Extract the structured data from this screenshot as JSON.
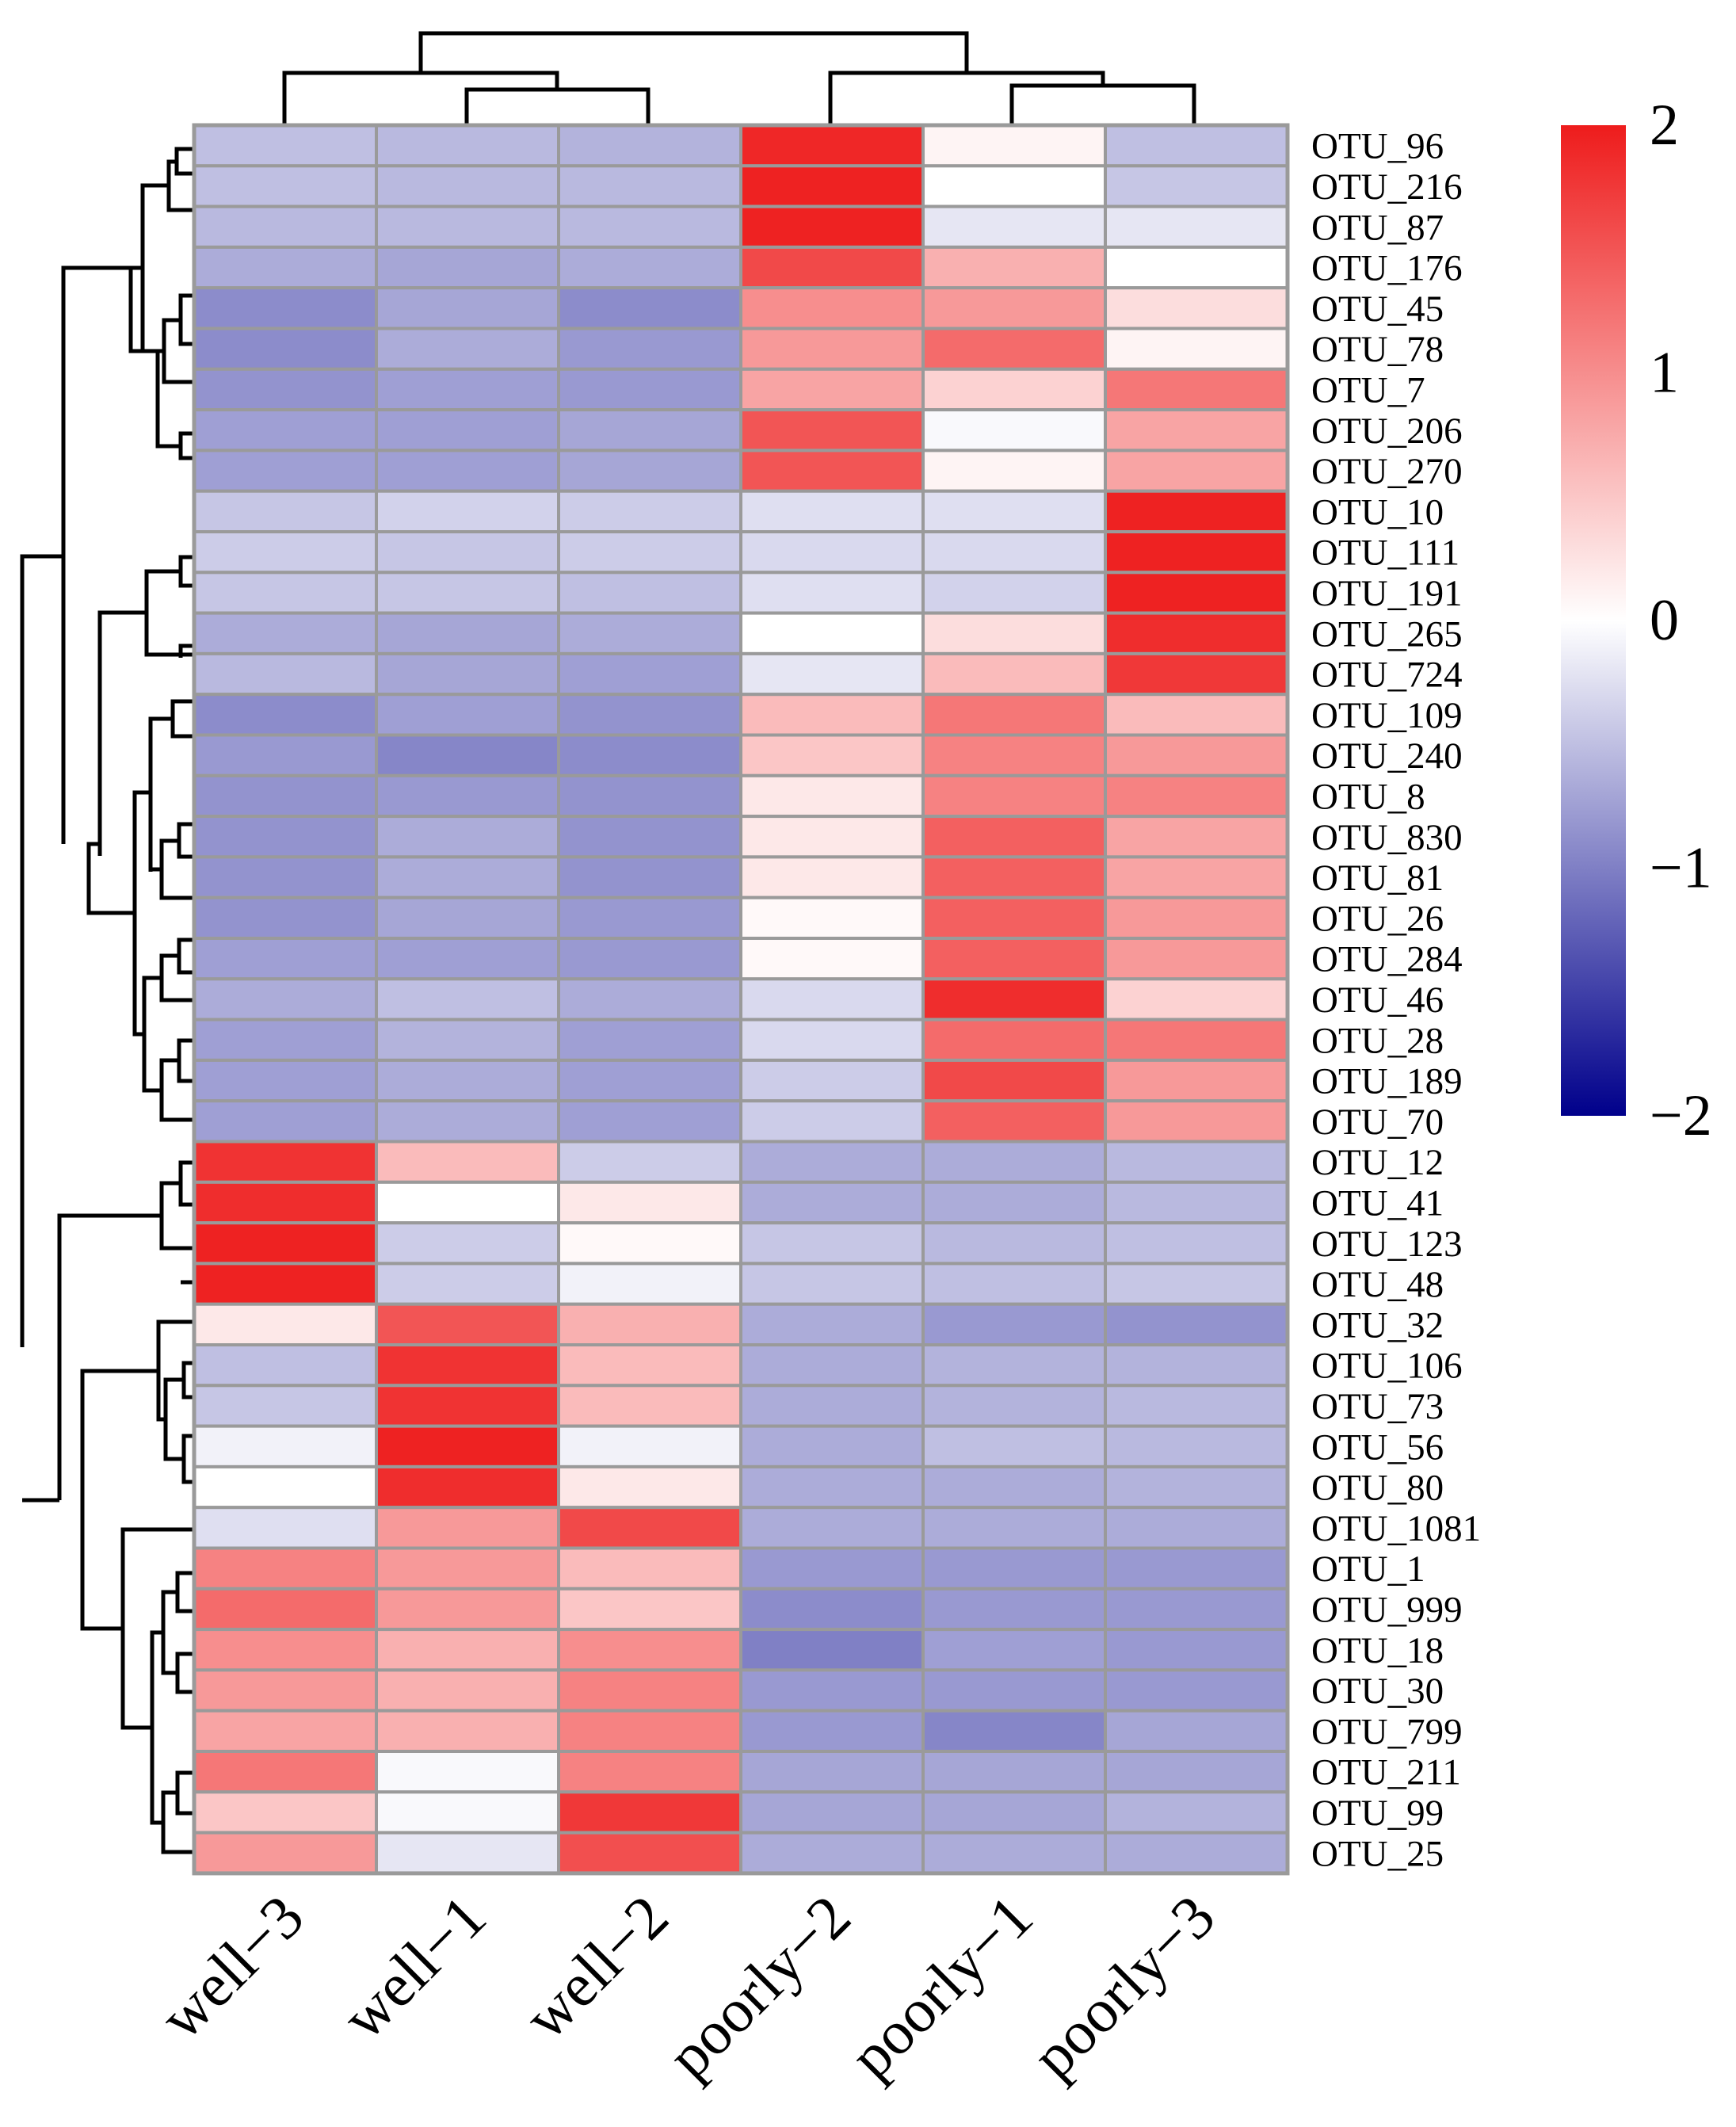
{
  "chart_data": {
    "type": "heatmap",
    "title": "",
    "columns": [
      "well−3",
      "well−1",
      "well−2",
      "poorly−2",
      "poorly−1",
      "poorly−3"
    ],
    "rows": [
      "OTU_96",
      "OTU_216",
      "OTU_87",
      "OTU_176",
      "OTU_45",
      "OTU_78",
      "OTU_7",
      "OTU_206",
      "OTU_270",
      "OTU_10",
      "OTU_111",
      "OTU_191",
      "OTU_265",
      "OTU_724",
      "OTU_109",
      "OTU_240",
      "OTU_8",
      "OTU_830",
      "OTU_81",
      "OTU_26",
      "OTU_284",
      "OTU_46",
      "OTU_28",
      "OTU_189",
      "OTU_70",
      "OTU_12",
      "OTU_41",
      "OTU_123",
      "OTU_48",
      "OTU_32",
      "OTU_106",
      "OTU_73",
      "OTU_56",
      "OTU_80",
      "OTU_1081",
      "OTU_1",
      "OTU_999",
      "OTU_18",
      "OTU_30",
      "OTU_799",
      "OTU_211",
      "OTU_99",
      "OTU_25"
    ],
    "values": [
      [
        -0.5,
        -0.55,
        -0.6,
        1.9,
        0.1,
        -0.5
      ],
      [
        -0.5,
        -0.55,
        -0.55,
        1.95,
        0.0,
        -0.45
      ],
      [
        -0.55,
        -0.55,
        -0.55,
        1.95,
        -0.2,
        -0.2
      ],
      [
        -0.65,
        -0.7,
        -0.65,
        1.6,
        0.7,
        0.0
      ],
      [
        -0.9,
        -0.7,
        -0.9,
        1.0,
        0.9,
        0.3
      ],
      [
        -0.9,
        -0.65,
        -0.8,
        0.9,
        1.3,
        0.1
      ],
      [
        -0.85,
        -0.75,
        -0.8,
        0.8,
        0.4,
        1.2
      ],
      [
        -0.75,
        -0.75,
        -0.7,
        1.5,
        -0.05,
        0.8
      ],
      [
        -0.75,
        -0.75,
        -0.7,
        1.5,
        0.1,
        0.8
      ],
      [
        -0.45,
        -0.35,
        -0.4,
        -0.25,
        -0.25,
        1.95
      ],
      [
        -0.4,
        -0.45,
        -0.4,
        -0.3,
        -0.3,
        1.95
      ],
      [
        -0.45,
        -0.45,
        -0.5,
        -0.25,
        -0.35,
        1.95
      ],
      [
        -0.65,
        -0.7,
        -0.65,
        0.0,
        0.3,
        1.85
      ],
      [
        -0.55,
        -0.7,
        -0.75,
        -0.2,
        0.6,
        1.75
      ],
      [
        -0.9,
        -0.75,
        -0.85,
        0.6,
        1.2,
        0.6
      ],
      [
        -0.8,
        -0.95,
        -0.9,
        0.5,
        1.1,
        0.9
      ],
      [
        -0.85,
        -0.8,
        -0.85,
        0.2,
        1.1,
        1.1
      ],
      [
        -0.85,
        -0.65,
        -0.85,
        0.2,
        1.4,
        0.8
      ],
      [
        -0.85,
        -0.65,
        -0.85,
        0.2,
        1.4,
        0.8
      ],
      [
        -0.85,
        -0.7,
        -0.8,
        0.05,
        1.4,
        0.9
      ],
      [
        -0.75,
        -0.75,
        -0.8,
        0.05,
        1.4,
        0.9
      ],
      [
        -0.65,
        -0.5,
        -0.65,
        -0.3,
        1.85,
        0.4
      ],
      [
        -0.75,
        -0.6,
        -0.75,
        -0.3,
        1.3,
        1.2
      ],
      [
        -0.75,
        -0.65,
        -0.75,
        -0.4,
        1.6,
        0.9
      ],
      [
        -0.75,
        -0.65,
        -0.75,
        -0.4,
        1.4,
        0.9
      ],
      [
        1.8,
        0.6,
        -0.4,
        -0.65,
        -0.65,
        -0.55
      ],
      [
        1.85,
        0.0,
        0.2,
        -0.65,
        -0.65,
        -0.55
      ],
      [
        1.95,
        -0.4,
        0.05,
        -0.45,
        -0.55,
        -0.5
      ],
      [
        1.95,
        -0.4,
        -0.1,
        -0.45,
        -0.5,
        -0.45
      ],
      [
        0.2,
        1.5,
        0.7,
        -0.65,
        -0.8,
        -0.85
      ],
      [
        -0.5,
        1.8,
        0.6,
        -0.65,
        -0.6,
        -0.6
      ],
      [
        -0.45,
        1.8,
        0.6,
        -0.65,
        -0.6,
        -0.55
      ],
      [
        -0.1,
        1.95,
        -0.1,
        -0.65,
        -0.5,
        -0.55
      ],
      [
        0.0,
        1.85,
        0.2,
        -0.65,
        -0.65,
        -0.6
      ],
      [
        -0.25,
        0.9,
        1.6,
        -0.65,
        -0.65,
        -0.65
      ],
      [
        1.1,
        0.9,
        0.6,
        -0.8,
        -0.8,
        -0.8
      ],
      [
        1.3,
        0.9,
        0.5,
        -0.9,
        -0.8,
        -0.8
      ],
      [
        1.0,
        0.7,
        1.0,
        -1.0,
        -0.75,
        -0.8
      ],
      [
        0.9,
        0.7,
        1.1,
        -0.8,
        -0.8,
        -0.8
      ],
      [
        0.8,
        0.7,
        1.1,
        -0.8,
        -0.95,
        -0.7
      ],
      [
        1.2,
        -0.05,
        1.1,
        -0.7,
        -0.7,
        -0.7
      ],
      [
        0.5,
        -0.05,
        1.75,
        -0.7,
        -0.7,
        -0.6
      ],
      [
        0.9,
        -0.2,
        1.55,
        -0.65,
        -0.65,
        -0.65
      ]
    ],
    "colorbar": {
      "min": -2,
      "max": 2,
      "ticks": [
        2,
        1,
        0,
        -1,
        -2
      ],
      "tick_labels": [
        "2",
        "1",
        "0",
        "−1",
        "−2"
      ],
      "colors": {
        "low": "#00008b",
        "mid": "#ffffff",
        "high": "#ee1c1c"
      }
    },
    "grid_color": "#9a9a9a",
    "row_dendrogram": true,
    "column_dendrogram": true,
    "legend_position": "right"
  }
}
